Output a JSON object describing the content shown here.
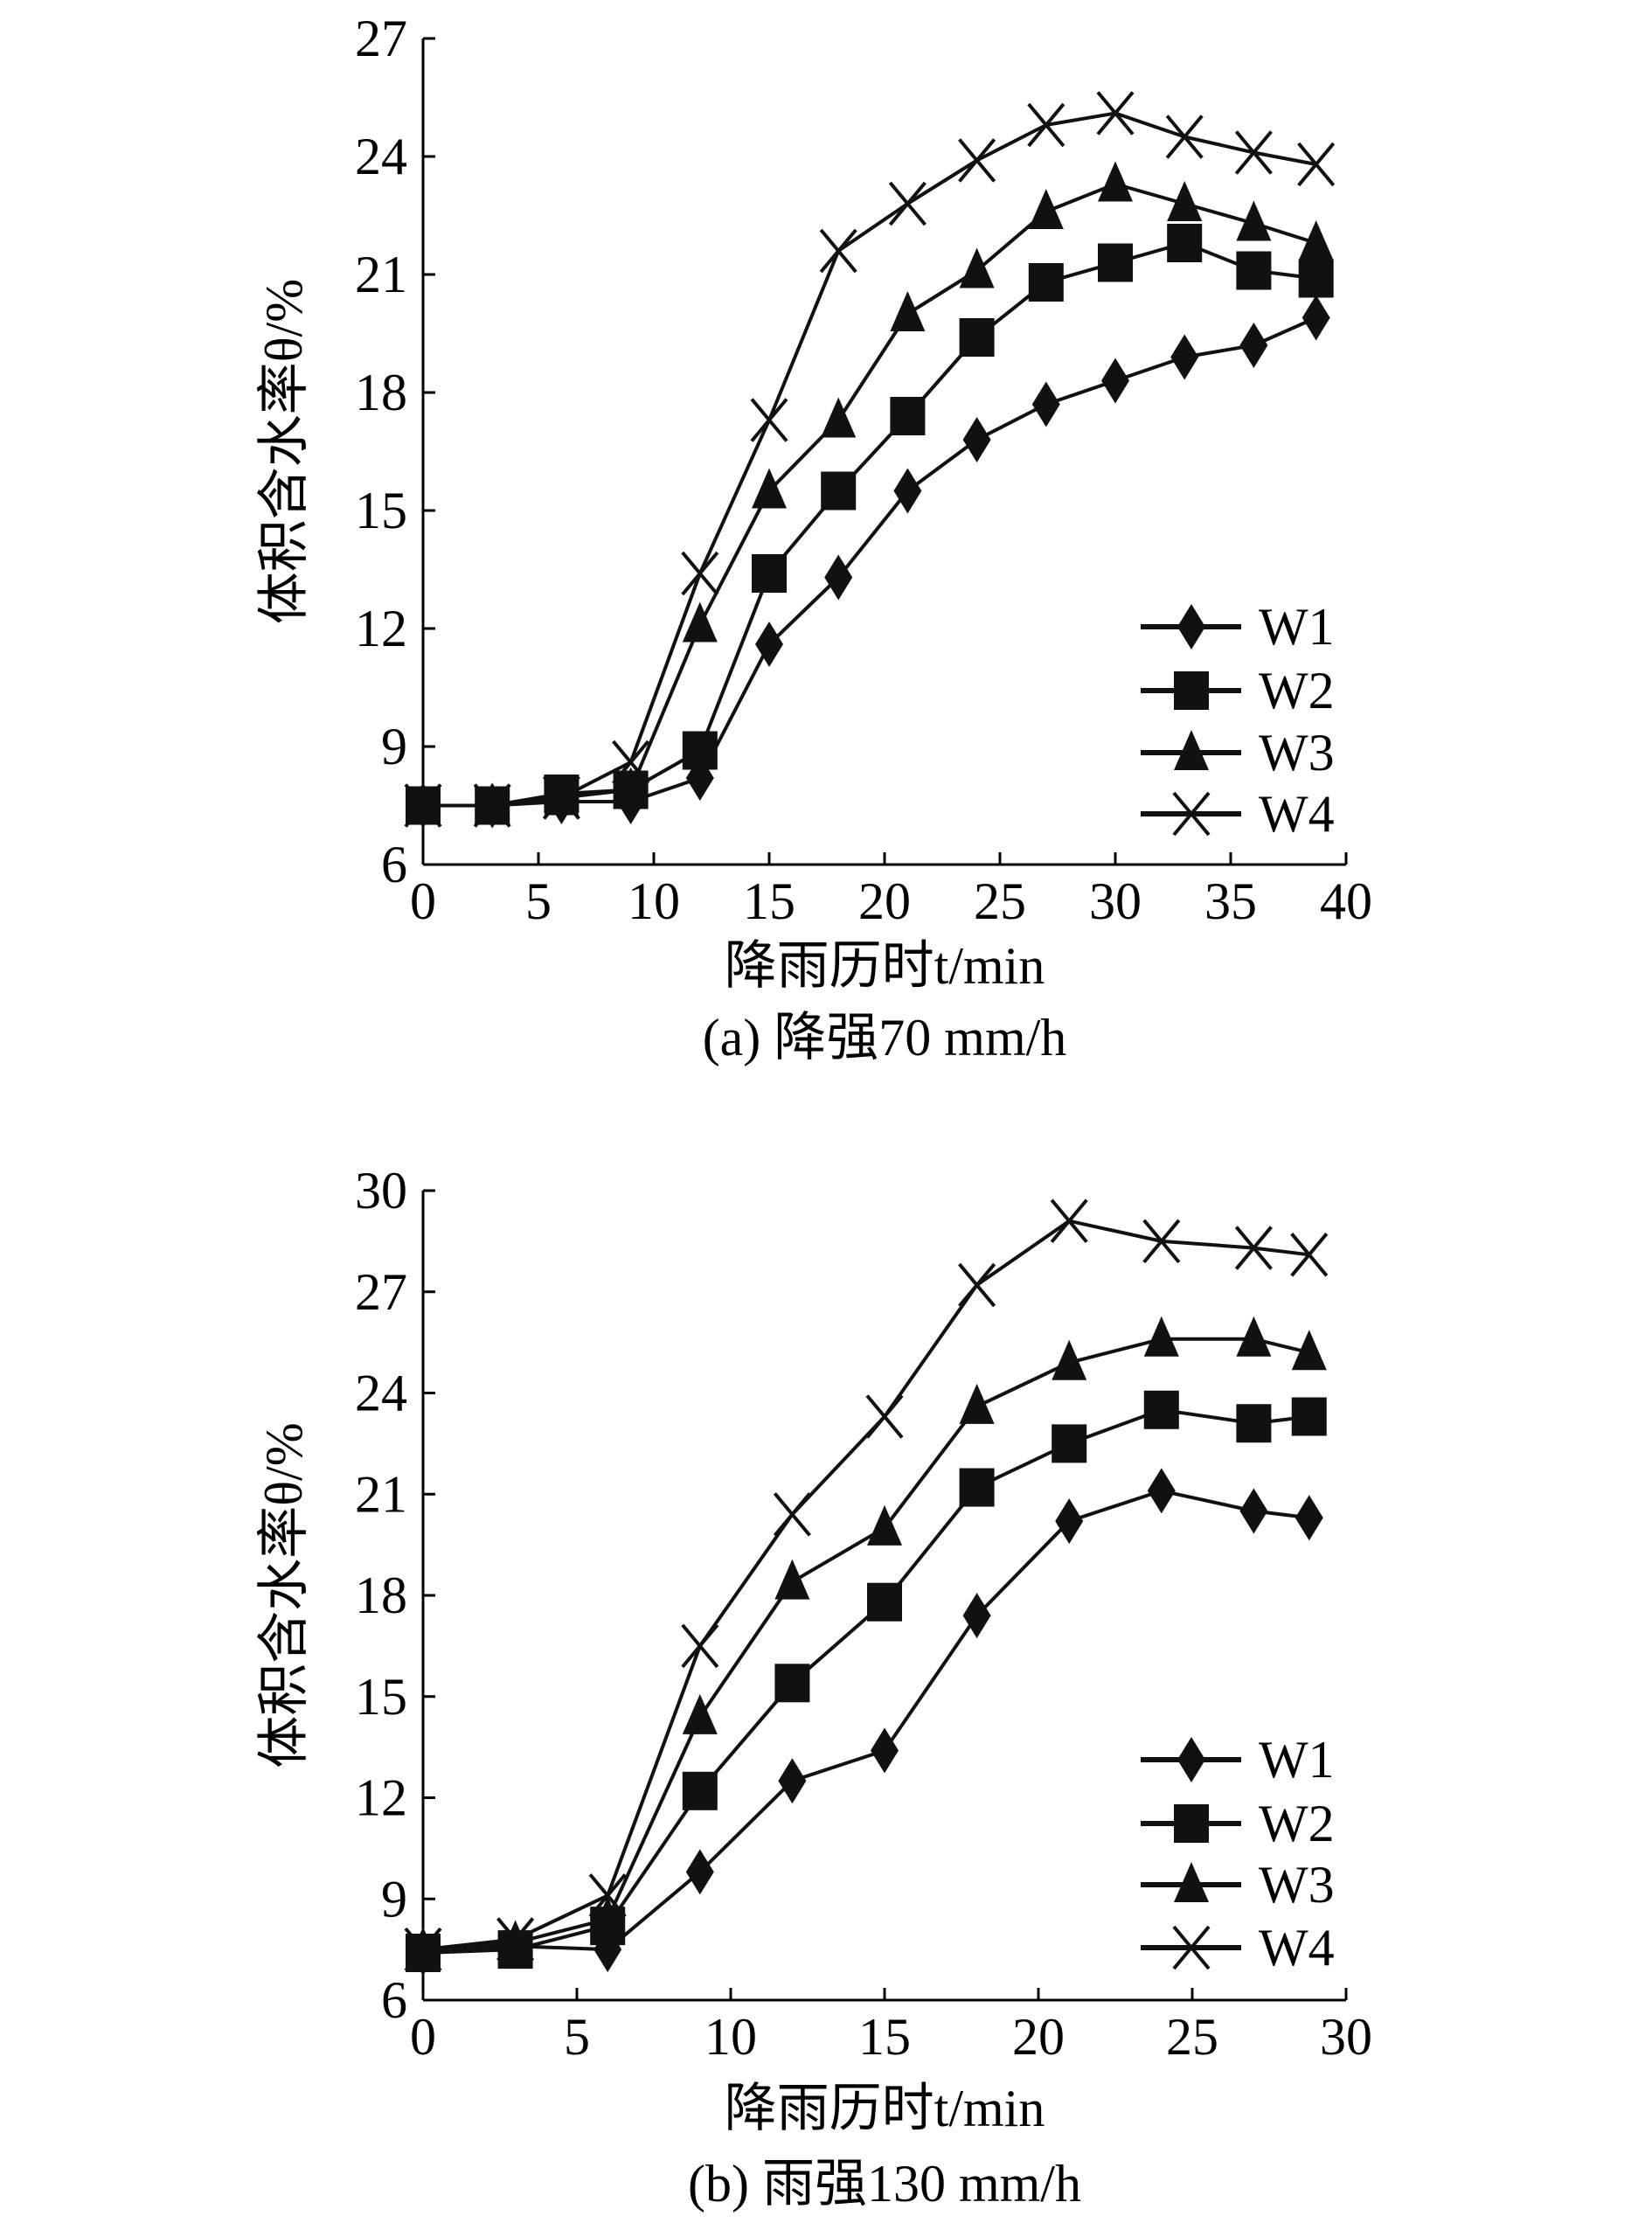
{
  "chart_data": [
    {
      "type": "line",
      "caption": "(a) 降强70 mm/h",
      "xlabel": "降雨历时t/min",
      "ylabel": "体积含水率θ/%",
      "xlim": [
        0,
        40
      ],
      "ylim": [
        6,
        27
      ],
      "xticks": [
        0,
        5,
        10,
        15,
        20,
        25,
        30,
        35,
        40
      ],
      "yticks": [
        6,
        9,
        12,
        15,
        18,
        21,
        24,
        27
      ],
      "grid": false,
      "legend": "bottom-right",
      "x": [
        0,
        3,
        6,
        9,
        12,
        15,
        18,
        21,
        24,
        27,
        30,
        33,
        36,
        38.7
      ],
      "series": [
        {
          "name": "W1",
          "marker": "diamond",
          "values": [
            7.5,
            7.5,
            7.6,
            7.6,
            8.2,
            11.6,
            13.3,
            15.5,
            16.8,
            17.7,
            18.3,
            18.9,
            19.2,
            19.9
          ]
        },
        {
          "name": "W2",
          "marker": "square",
          "values": [
            7.5,
            7.5,
            7.8,
            7.9,
            8.9,
            13.4,
            15.5,
            17.4,
            19.4,
            20.8,
            21.3,
            21.8,
            21.1,
            20.9
          ]
        },
        {
          "name": "W3",
          "marker": "triangle",
          "values": [
            7.5,
            7.5,
            7.7,
            7.9,
            12.1,
            15.5,
            17.3,
            20.0,
            21.1,
            22.6,
            23.3,
            22.8,
            22.3,
            21.8
          ]
        },
        {
          "name": "W4",
          "marker": "x",
          "values": [
            7.5,
            7.5,
            7.7,
            8.6,
            13.4,
            17.3,
            21.6,
            22.8,
            23.9,
            24.8,
            25.1,
            24.5,
            24.1,
            23.8
          ]
        }
      ]
    },
    {
      "type": "line",
      "caption": "(b) 雨强130 mm/h",
      "xlabel": "降雨历时t/min",
      "ylabel": "体积含水率θ/%",
      "xlim": [
        0,
        30
      ],
      "ylim": [
        6,
        30
      ],
      "xticks": [
        0,
        5,
        10,
        15,
        20,
        25,
        30
      ],
      "yticks": [
        6,
        9,
        12,
        15,
        18,
        21,
        24,
        27,
        30
      ],
      "grid": false,
      "legend": "bottom-right",
      "x": [
        0,
        3,
        6,
        9,
        12,
        15,
        18,
        21,
        24,
        27,
        28.8
      ],
      "series": [
        {
          "name": "W1",
          "marker": "diamond",
          "values": [
            7.4,
            7.6,
            7.5,
            9.8,
            12.5,
            13.4,
            17.4,
            20.2,
            21.1,
            20.5,
            20.3
          ]
        },
        {
          "name": "W2",
          "marker": "square",
          "values": [
            7.4,
            7.5,
            8.2,
            12.2,
            15.4,
            17.8,
            21.2,
            22.5,
            23.5,
            23.1,
            23.3
          ]
        },
        {
          "name": "W3",
          "marker": "triangle",
          "values": [
            7.5,
            7.7,
            8.4,
            14.4,
            18.4,
            20.0,
            23.6,
            24.9,
            25.6,
            25.6,
            25.2
          ]
        },
        {
          "name": "W4",
          "marker": "x",
          "values": [
            7.5,
            7.8,
            9.1,
            16.5,
            20.4,
            23.3,
            27.2,
            29.1,
            28.5,
            28.3,
            28.1
          ]
        }
      ]
    }
  ]
}
